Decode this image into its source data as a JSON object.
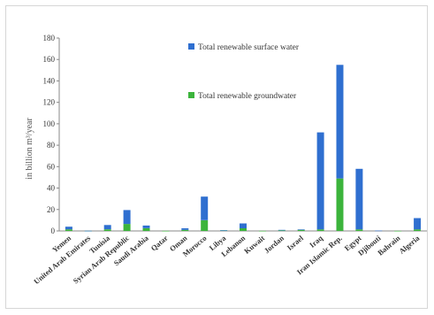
{
  "chart_data": {
    "type": "bar",
    "stacked": true,
    "ylabel": "in billion m³/year",
    "ylim": [
      0,
      180
    ],
    "yticks": [
      0,
      20,
      40,
      60,
      80,
      100,
      120,
      140,
      160,
      180
    ],
    "grid": false,
    "categories": [
      "Yemen",
      "United Arab Emirates",
      "Tunisia",
      "Syrian Arab Republic",
      "Saudi Arabia",
      "Qatar",
      "Oman",
      "Morocco",
      "Libya",
      "Lebanon",
      "Kuwait",
      "Jordan",
      "Israel",
      "Iraq",
      "Iran Islamic Rep.",
      "Egypt",
      "Djibouti",
      "Bahrain",
      "Algeria"
    ],
    "series": [
      {
        "name": "Total renewable groundwater",
        "color": "#3cb43c",
        "values": [
          1.5,
          0.1,
          1.5,
          6.5,
          2.5,
          0.1,
          1.0,
          10.0,
          0.5,
          2.5,
          0.1,
          0.5,
          1.0,
          1.5,
          49.0,
          1.5,
          0.0,
          0.1,
          1.5
        ]
      },
      {
        "name": "Total renewable surface water",
        "color": "#2f6fd0",
        "values": [
          2.5,
          0.1,
          4.0,
          13.0,
          2.5,
          0.0,
          1.5,
          22.0,
          0.2,
          4.5,
          0.0,
          0.5,
          0.5,
          90.5,
          106.0,
          56.5,
          0.3,
          0.0,
          10.5
        ]
      }
    ],
    "legend": [
      {
        "label": "Total renewable surface water",
        "color": "#2f6fd0"
      },
      {
        "label": "Total renewable groundwater",
        "color": "#3cb43c"
      }
    ]
  }
}
